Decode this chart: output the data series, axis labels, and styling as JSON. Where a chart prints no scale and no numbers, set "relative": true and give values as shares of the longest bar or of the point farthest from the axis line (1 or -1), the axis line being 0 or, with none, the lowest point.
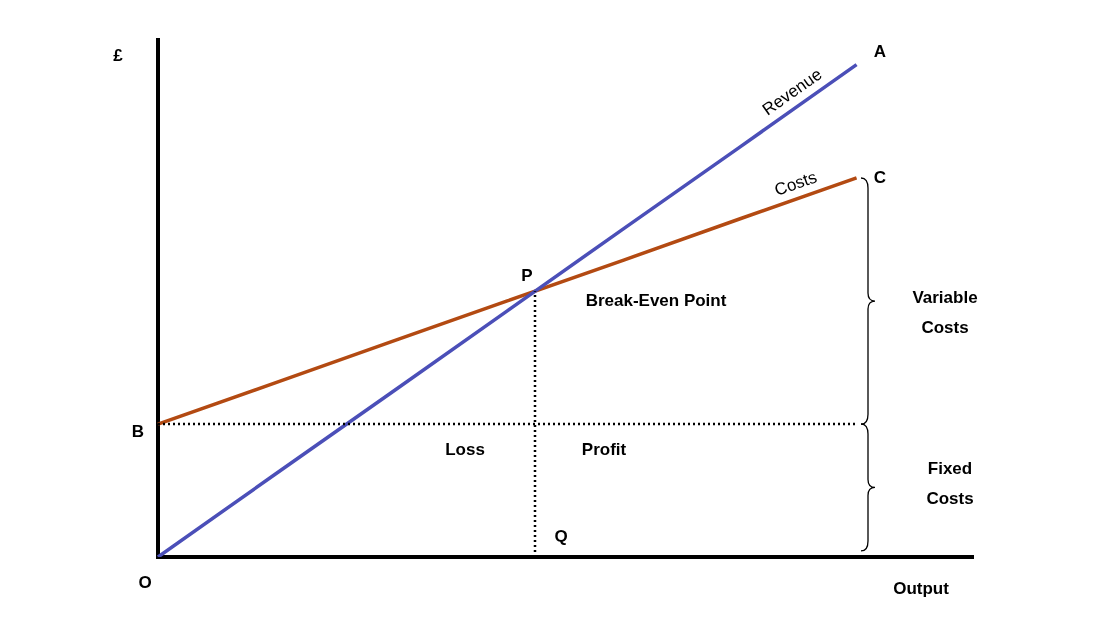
{
  "chart_data": {
    "type": "line",
    "relative": true,
    "xlabel": "Output",
    "ylabel": "£",
    "categories": [
      null,
      null,
      null,
      null,
      null,
      null,
      null,
      null
    ],
    "legend": false,
    "marker": "none",
    "series": [
      {
        "name": "Revenue",
        "color": "#4b4fb8",
        "values": [
          0,
          0.167,
          0.333,
          0.5,
          0.667,
          0.833,
          1,
          null
        ]
      },
      {
        "name": "Costs",
        "color": "#b34a12",
        "values": [
          0.27,
          0.353,
          0.437,
          0.52,
          0.603,
          0.687,
          0.77,
          null
        ]
      }
    ],
    "ref_lines": [
      {
        "axis": "y",
        "value": 0.27,
        "label": "B",
        "line_style": "dotted",
        "color": "#000000"
      },
      {
        "axis": "x",
        "label": "Q",
        "line_style": "dotted",
        "color": "#000000"
      }
    ],
    "annotations": [
      "O",
      "A",
      "C",
      "P",
      "Break-Even Point",
      "Loss",
      "Profit",
      "Variable Costs",
      "Fixed Costs"
    ]
  }
}
